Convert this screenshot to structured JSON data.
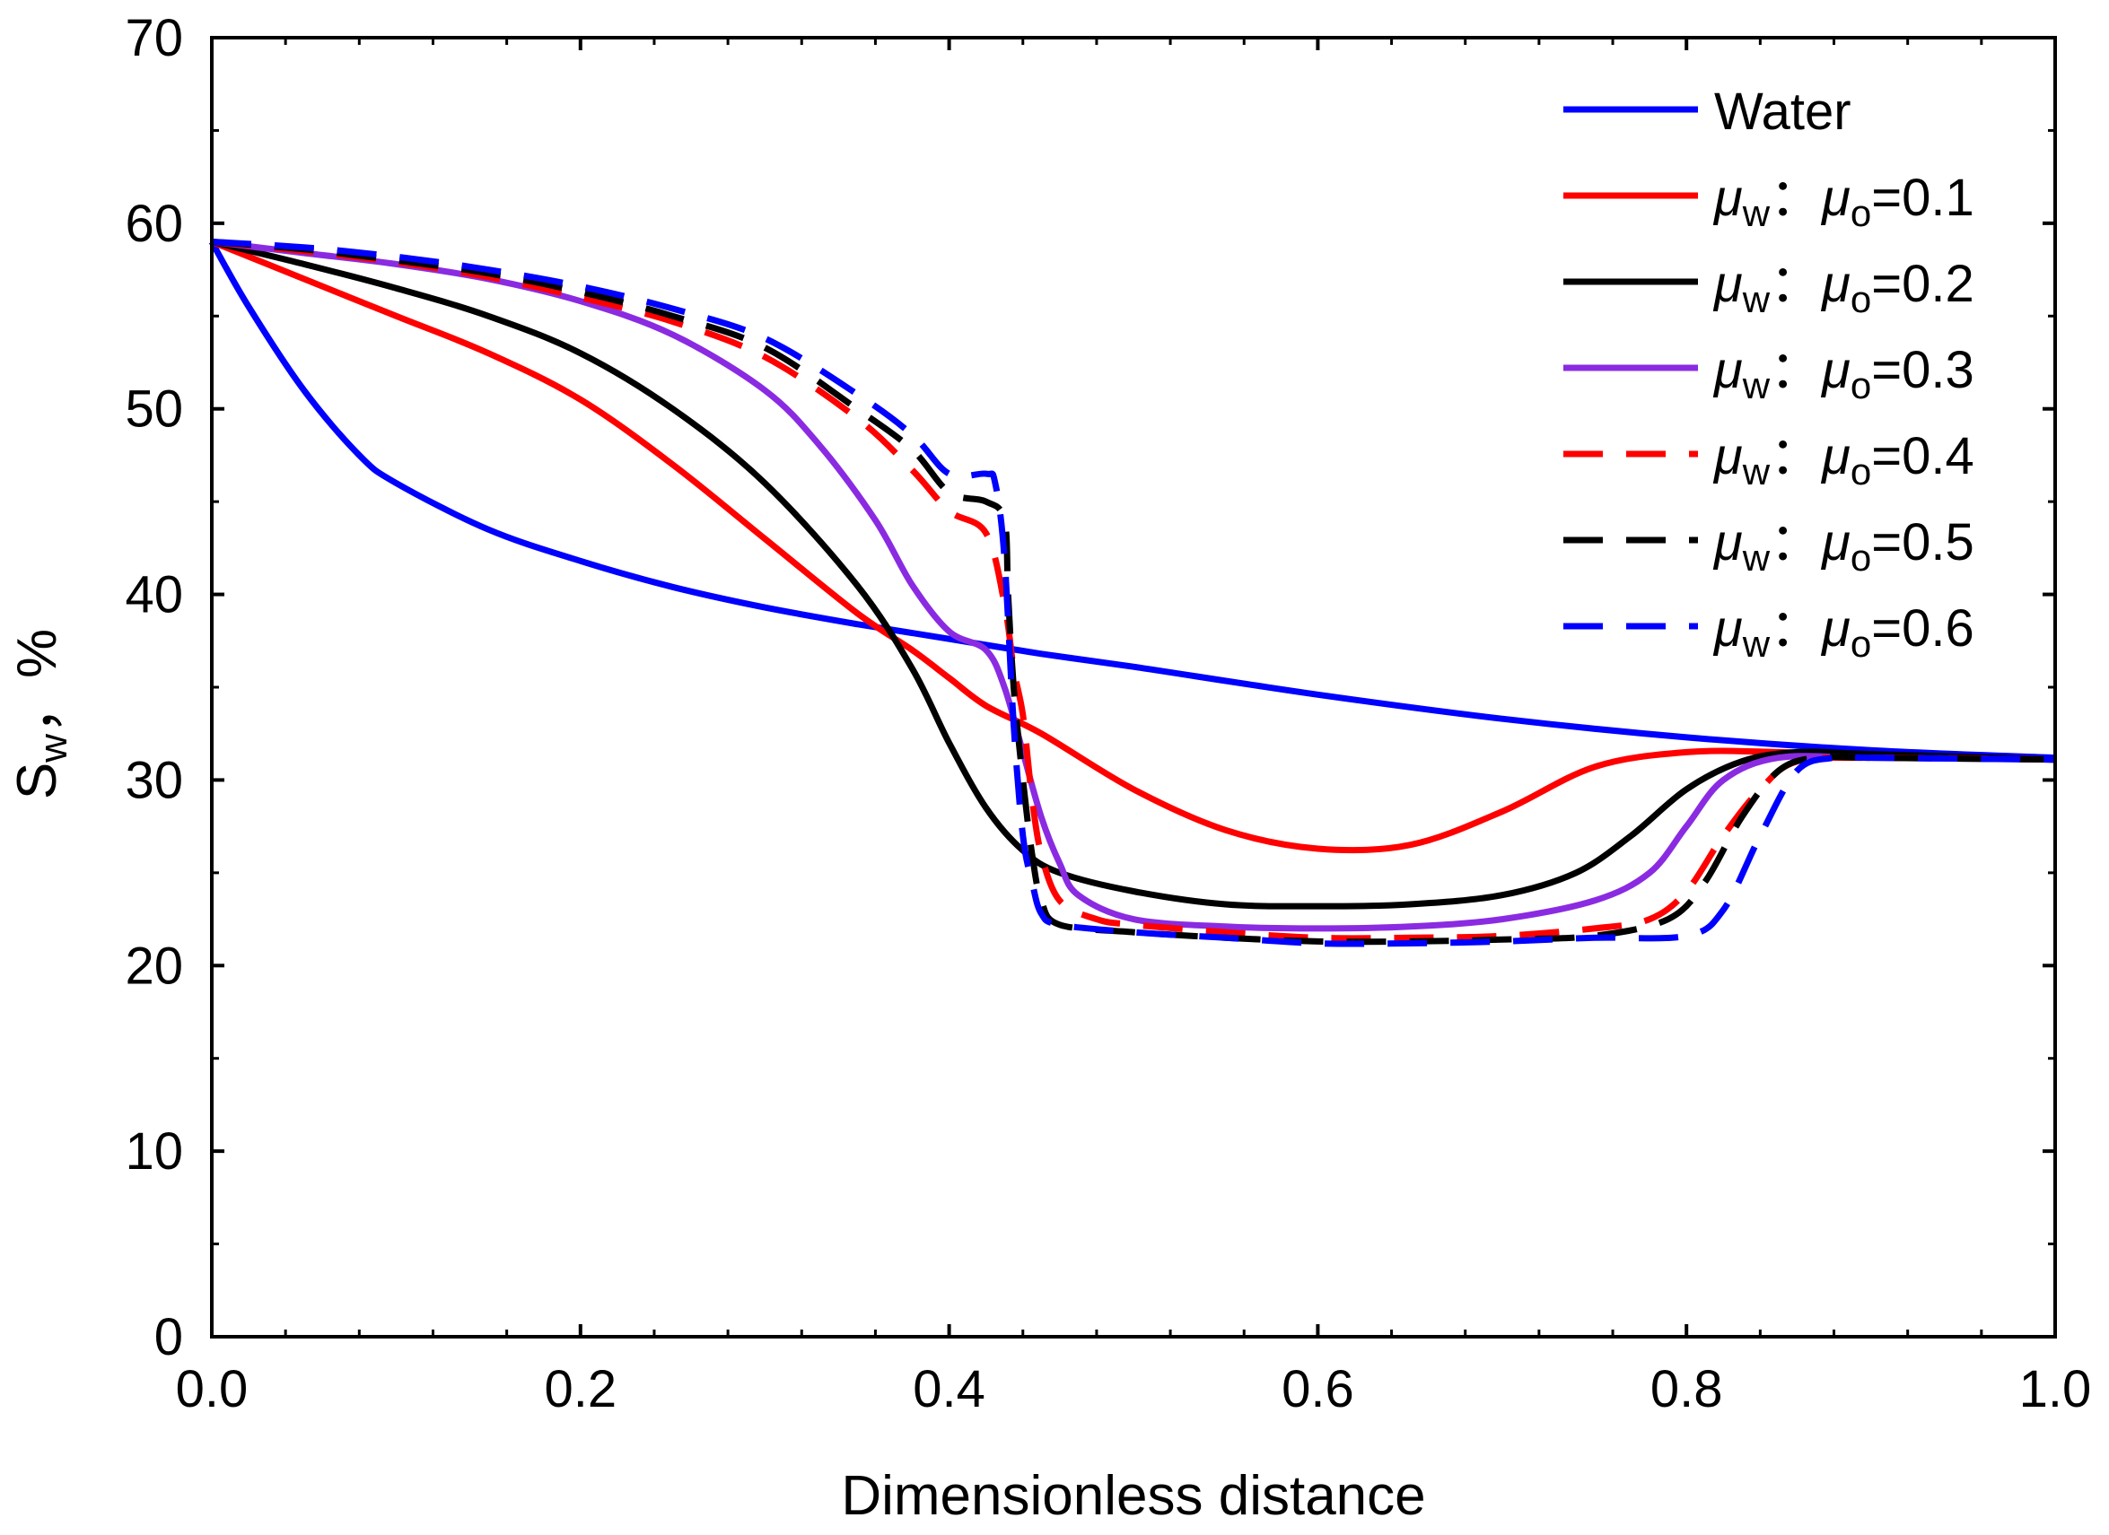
{
  "chart_data": {
    "type": "line",
    "title": "",
    "xlabel": "Dimensionless distance",
    "ylabel": {
      "main": "S",
      "sub": "w",
      "suffix": "，%"
    },
    "xlim": [
      0.0,
      1.0
    ],
    "ylim": [
      0,
      70
    ],
    "xticks": [
      0.0,
      0.2,
      0.4,
      0.6,
      0.8,
      1.0
    ],
    "xtick_labels": [
      "0.0",
      "0.2",
      "0.4",
      "0.6",
      "0.8",
      "1.0"
    ],
    "yticks": [
      0,
      10,
      20,
      30,
      40,
      50,
      60,
      70
    ],
    "ytick_labels": [
      "0",
      "10",
      "20",
      "30",
      "40",
      "50",
      "60",
      "70"
    ],
    "grid": false,
    "legend_position": "top-right",
    "series": [
      {
        "name": "Water",
        "label": {
          "plain": "Water"
        },
        "color": "#0000ff",
        "dash": false,
        "x": [
          0,
          0.02,
          0.05,
          0.08,
          0.1,
          0.15,
          0.2,
          0.25,
          0.3,
          0.35,
          0.4,
          0.45,
          0.5,
          0.6,
          0.7,
          0.8,
          0.9,
          1.0
        ],
        "y": [
          59,
          55.5,
          51,
          47.5,
          46,
          43.5,
          41.8,
          40.4,
          39.3,
          38.4,
          37.6,
          36.8,
          36.1,
          34.6,
          33.3,
          32.3,
          31.6,
          31.2
        ]
      },
      {
        "name": "μw：μo=0.1",
        "label": {
          "mu": "μ",
          "sub1": "w",
          "sep": "：",
          "sub2": "o",
          "value": "=0.1"
        },
        "color": "#ff0000",
        "dash": false,
        "x": [
          0,
          0.05,
          0.1,
          0.15,
          0.2,
          0.25,
          0.3,
          0.35,
          0.38,
          0.4,
          0.42,
          0.45,
          0.5,
          0.55,
          0.6,
          0.65,
          0.7,
          0.75,
          0.8,
          0.85,
          0.9,
          1.0
        ],
        "y": [
          59,
          57,
          55,
          53,
          50.5,
          47,
          43,
          39,
          37,
          35.5,
          34,
          32.5,
          29.5,
          27.3,
          26.3,
          26.5,
          28.3,
          30.7,
          31.5,
          31.5,
          31.3,
          31.1
        ]
      },
      {
        "name": "μw：μo=0.2",
        "label": {
          "mu": "μ",
          "sub1": "w",
          "sep": "：",
          "sub2": "o",
          "value": "=0.2"
        },
        "color": "#000000",
        "dash": false,
        "x": [
          0,
          0.05,
          0.1,
          0.15,
          0.2,
          0.25,
          0.3,
          0.35,
          0.38,
          0.4,
          0.42,
          0.44,
          0.46,
          0.5,
          0.55,
          0.6,
          0.65,
          0.7,
          0.74,
          0.77,
          0.8,
          0.83,
          0.86,
          0.9,
          1.0
        ],
        "y": [
          59,
          57.8,
          56.5,
          55,
          53,
          50,
          46,
          40.5,
          36,
          32,
          28.5,
          26.2,
          25,
          24,
          23.3,
          23.2,
          23.3,
          23.8,
          25,
          27,
          29.5,
          31,
          31.5,
          31.4,
          31.1
        ]
      },
      {
        "name": "μw：μo=0.3",
        "label": {
          "mu": "μ",
          "sub1": "w",
          "sep": "：",
          "sub2": "o",
          "value": "=0.3"
        },
        "color": "#8a2be2",
        "dash": false,
        "x": [
          0,
          0.05,
          0.1,
          0.15,
          0.2,
          0.25,
          0.3,
          0.33,
          0.36,
          0.38,
          0.4,
          0.42,
          0.43,
          0.44,
          0.45,
          0.46,
          0.47,
          0.5,
          0.55,
          0.6,
          0.65,
          0.7,
          0.75,
          0.78,
          0.8,
          0.82,
          0.85,
          0.9,
          1.0
        ],
        "y": [
          59,
          58.4,
          57.8,
          57,
          55.8,
          54,
          51,
          48,
          44,
          40.5,
          38,
          37,
          35,
          31.5,
          28,
          25.5,
          23.8,
          22.5,
          22.1,
          22,
          22.1,
          22.5,
          23.5,
          25,
          27.5,
          30,
          31.2,
          31.2,
          31.1
        ]
      },
      {
        "name": "μw：μo=0.4",
        "label": {
          "mu": "μ",
          "sub1": "w",
          "sep": "：",
          "sub2": "o",
          "value": "=0.4"
        },
        "color": "#ff0000",
        "dash": true,
        "x": [
          0,
          0.05,
          0.1,
          0.15,
          0.2,
          0.25,
          0.3,
          0.35,
          0.38,
          0.4,
          0.42,
          0.43,
          0.435,
          0.44,
          0.445,
          0.45,
          0.46,
          0.48,
          0.5,
          0.55,
          0.6,
          0.65,
          0.7,
          0.75,
          0.78,
          0.8,
          0.82,
          0.84,
          0.86,
          0.9,
          1.0
        ],
        "y": [
          59,
          58.5,
          57.9,
          57.1,
          56,
          54.7,
          52.8,
          49.5,
          46.7,
          44.5,
          43.3,
          39.5,
          36,
          33.5,
          29,
          26,
          23.5,
          22.5,
          22.2,
          21.8,
          21.5,
          21.5,
          21.6,
          22,
          22.5,
          24,
          27,
          29.5,
          31,
          31.2,
          31.1
        ]
      },
      {
        "name": "μw：μo=0.5",
        "label": {
          "mu": "μ",
          "sub1": "w",
          "sep": "：",
          "sub2": "o",
          "value": "=0.5"
        },
        "color": "#000000",
        "dash": true,
        "x": [
          0,
          0.05,
          0.1,
          0.15,
          0.2,
          0.25,
          0.3,
          0.35,
          0.38,
          0.4,
          0.42,
          0.43,
          0.432,
          0.435,
          0.44,
          0.445,
          0.45,
          0.46,
          0.5,
          0.55,
          0.6,
          0.65,
          0.7,
          0.75,
          0.79,
          0.81,
          0.83,
          0.85,
          0.87,
          0.9,
          1.0
        ],
        "y": [
          59,
          58.6,
          58,
          57.3,
          56.3,
          55,
          53.3,
          50,
          47.8,
          45.5,
          45,
          44,
          40,
          35,
          30,
          26,
          23.5,
          22.2,
          21.8,
          21.5,
          21.3,
          21.3,
          21.4,
          21.6,
          22.5,
          24.5,
          28,
          30.5,
          31.2,
          31.2,
          31.1
        ]
      },
      {
        "name": "μw：μo=0.6",
        "label": {
          "mu": "μ",
          "sub1": "w",
          "sep": "：",
          "sub2": "o",
          "value": "=0.6"
        },
        "color": "#0000ff",
        "dash": true,
        "x": [
          0,
          0.05,
          0.1,
          0.15,
          0.2,
          0.25,
          0.3,
          0.35,
          0.38,
          0.4,
          0.42,
          0.425,
          0.43,
          0.435,
          0.44,
          0.445,
          0.45,
          0.46,
          0.5,
          0.55,
          0.6,
          0.65,
          0.7,
          0.75,
          0.8,
          0.82,
          0.84,
          0.86,
          0.88,
          0.9,
          1.0
        ],
        "y": [
          59,
          58.7,
          58.2,
          57.5,
          56.6,
          55.4,
          53.8,
          50.8,
          48.6,
          46.5,
          46.5,
          46,
          42,
          33,
          27,
          24.5,
          22.8,
          22.2,
          21.8,
          21.5,
          21.2,
          21.2,
          21.3,
          21.5,
          21.6,
          23,
          27,
          30.5,
          31.2,
          31.2,
          31.1
        ]
      }
    ]
  }
}
